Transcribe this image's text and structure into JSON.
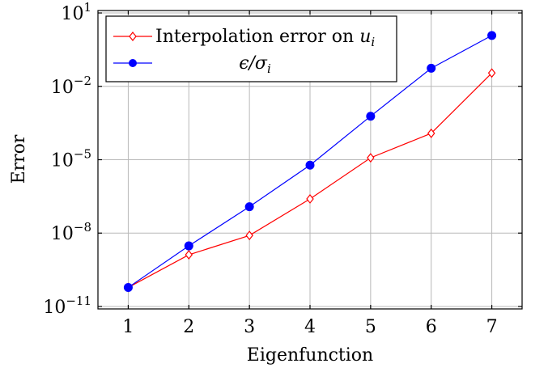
{
  "chart_data": {
    "type": "line",
    "xlabel": "Eigenfunction",
    "ylabel": "Error",
    "y_scale": "log",
    "grid": true,
    "legend_position": "top-left",
    "xlim": [
      0.5,
      7.5
    ],
    "ylim_log10": [
      -11.1,
      1.1
    ],
    "x_ticks": [
      1,
      2,
      3,
      4,
      5,
      6,
      7
    ],
    "y_ticks": [
      {
        "base": "10",
        "exp": "1",
        "value": 10
      },
      {
        "base": "10",
        "exp": "−2",
        "value": 0.01
      },
      {
        "base": "10",
        "exp": "−5",
        "value": 1e-05
      },
      {
        "base": "10",
        "exp": "−8",
        "value": 1e-08
      },
      {
        "base": "10",
        "exp": "−11",
        "value": 1e-11
      }
    ],
    "x": [
      1,
      2,
      3,
      4,
      5,
      6,
      7
    ],
    "series": [
      {
        "name": "Interpolation error on u_i",
        "legend_text": "Interpolation error on ",
        "legend_math": "u",
        "legend_sub": "i",
        "color": "#ff0000",
        "marker": "diamond",
        "values": [
          6e-11,
          1.3e-09,
          8e-09,
          2.5e-07,
          1.2e-05,
          0.00012,
          0.035
        ]
      },
      {
        "name": "ε/σ_i",
        "legend_text": "",
        "legend_math": "ϵ/σ",
        "legend_sub": "i",
        "color": "#0000ff",
        "marker": "circle",
        "values": [
          6e-11,
          3e-09,
          1.2e-07,
          6e-06,
          0.0006,
          0.055,
          1.2
        ]
      }
    ]
  }
}
